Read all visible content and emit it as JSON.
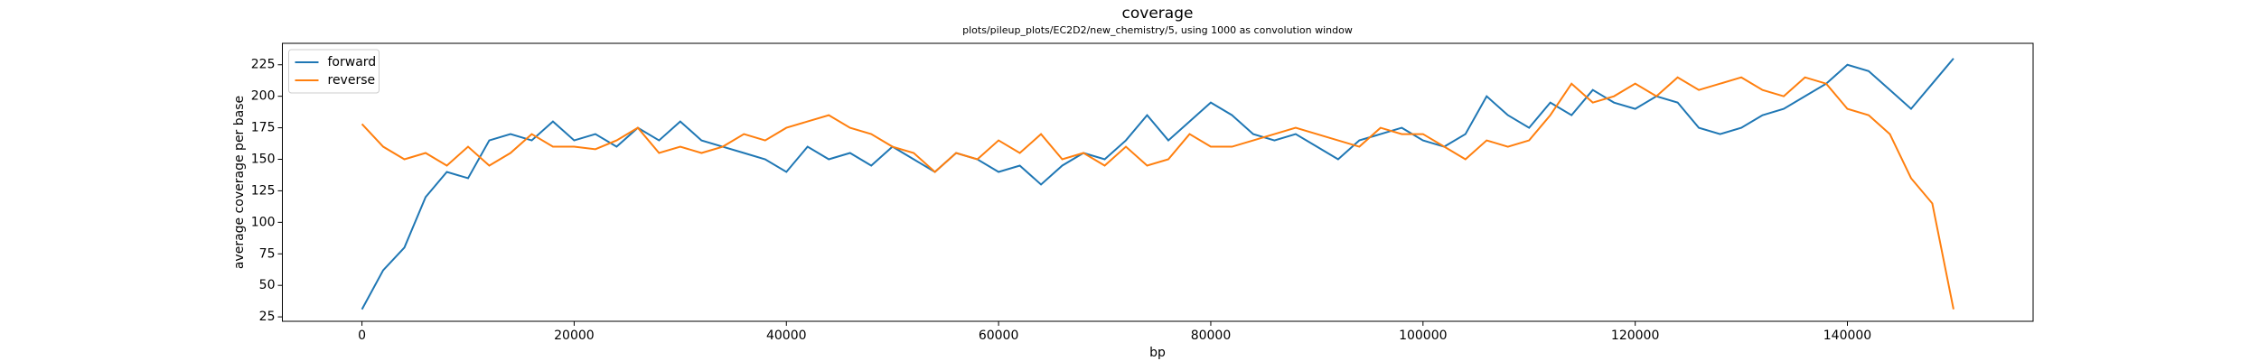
{
  "chart_data": {
    "type": "line",
    "title": "coverage",
    "subtitle": "plots/pileup_plots/EC2D2/new_chemistry/5, using 1000 as convolution window",
    "x_label": "bp",
    "y_label": "average coverage per base",
    "x": [
      0,
      2000,
      4000,
      6000,
      8000,
      10000,
      12000,
      14000,
      16000,
      18000,
      20000,
      22000,
      24000,
      26000,
      28000,
      30000,
      32000,
      34000,
      36000,
      38000,
      40000,
      42000,
      44000,
      46000,
      48000,
      50000,
      52000,
      54000,
      56000,
      58000,
      60000,
      62000,
      64000,
      66000,
      68000,
      70000,
      72000,
      74000,
      76000,
      78000,
      80000,
      82000,
      84000,
      86000,
      88000,
      90000,
      92000,
      94000,
      96000,
      98000,
      100000,
      102000,
      104000,
      106000,
      108000,
      110000,
      112000,
      114000,
      116000,
      118000,
      120000,
      122000,
      124000,
      126000,
      128000,
      130000,
      132000,
      134000,
      136000,
      138000,
      140000,
      142000,
      144000,
      146000,
      148000,
      150000
    ],
    "series": [
      {
        "name": "forward",
        "color": "#1f77b4",
        "values": [
          31,
          62,
          80,
          120,
          140,
          135,
          165,
          170,
          165,
          180,
          165,
          170,
          160,
          175,
          165,
          180,
          165,
          160,
          155,
          150,
          140,
          160,
          150,
          155,
          145,
          160,
          150,
          140,
          155,
          150,
          140,
          145,
          130,
          145,
          155,
          150,
          165,
          185,
          165,
          180,
          195,
          185,
          170,
          165,
          170,
          160,
          150,
          165,
          170,
          175,
          165,
          160,
          170,
          200,
          185,
          175,
          195,
          185,
          205,
          195,
          190,
          200,
          195,
          175,
          170,
          175,
          185,
          190,
          200,
          210,
          225,
          220,
          205,
          190,
          210,
          230
        ]
      },
      {
        "name": "reverse",
        "color": "#ff7f0e",
        "values": [
          178,
          160,
          150,
          155,
          145,
          160,
          145,
          155,
          170,
          160,
          160,
          158,
          165,
          175,
          155,
          160,
          155,
          160,
          170,
          165,
          175,
          180,
          185,
          175,
          170,
          160,
          155,
          140,
          155,
          150,
          165,
          155,
          170,
          150,
          155,
          145,
          160,
          145,
          150,
          170,
          160,
          160,
          165,
          170,
          175,
          170,
          165,
          160,
          175,
          170,
          170,
          160,
          150,
          165,
          160,
          165,
          185,
          210,
          195,
          200,
          210,
          200,
          215,
          205,
          210,
          215,
          205,
          200,
          215,
          210,
          190,
          185,
          170,
          135,
          115,
          31
        ]
      }
    ],
    "xlim": [
      -7500,
      157500
    ],
    "ylim": [
      21.5,
      242
    ],
    "xticks": [
      0,
      20000,
      40000,
      60000,
      80000,
      100000,
      120000,
      140000
    ],
    "yticks": [
      25,
      50,
      75,
      100,
      125,
      150,
      175,
      200,
      225
    ],
    "legend": "upper left"
  }
}
